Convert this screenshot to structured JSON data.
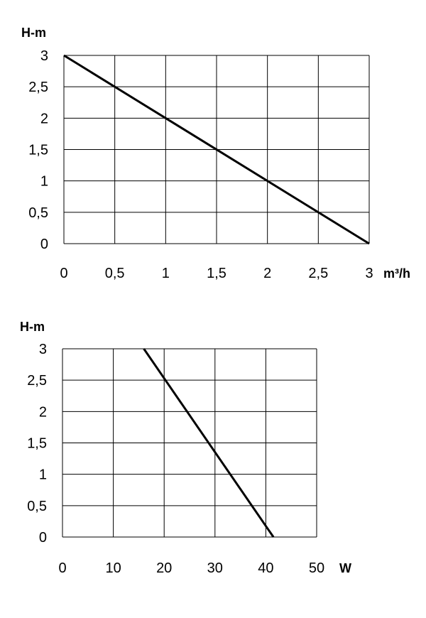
{
  "chart_data": [
    {
      "type": "line",
      "ylabel": "H-m",
      "xlabel": "m³/h",
      "xlim": [
        0,
        3
      ],
      "ylim": [
        0,
        3
      ],
      "x_ticks": [
        "0",
        "0,5",
        "1",
        "1,5",
        "2",
        "2,5",
        "3"
      ],
      "y_ticks": [
        "0",
        "0,5",
        "1",
        "1,5",
        "2",
        "2,5",
        "3"
      ],
      "grid": true,
      "series": [
        {
          "x": [
            0,
            3
          ],
          "y": [
            3,
            0
          ]
        }
      ]
    },
    {
      "type": "line",
      "ylabel": "H-m",
      "xlabel": "W",
      "xlim": [
        0,
        50
      ],
      "ylim": [
        0,
        3
      ],
      "x_ticks": [
        "0",
        "10",
        "20",
        "30",
        "40",
        "50"
      ],
      "y_ticks": [
        "0",
        "0,5",
        "1",
        "1,5",
        "2",
        "2,5",
        "3"
      ],
      "grid": true,
      "series": [
        {
          "x": [
            16,
            41.5
          ],
          "y": [
            3,
            0
          ]
        }
      ]
    }
  ]
}
